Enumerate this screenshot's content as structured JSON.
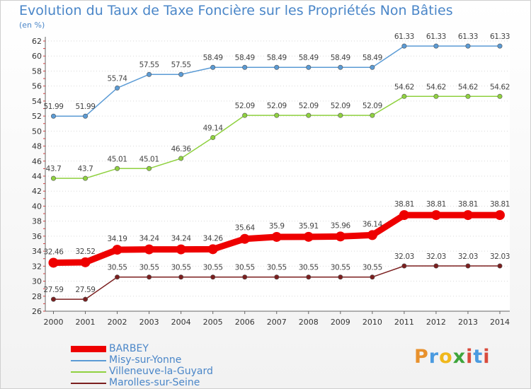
{
  "title": "Evolution du Taux de Taxe Foncière sur les Propriétés Non Bâties",
  "unit": "(en %)",
  "logo": "Proxiti",
  "chart_data": {
    "type": "line",
    "title": "Evolution du Taux de Taxe Foncière sur les Propriétés Non Bâties",
    "ylabel": "(en %)",
    "ylim": [
      26,
      62
    ],
    "yticks": [
      26,
      28,
      30,
      32,
      34,
      36,
      38,
      40,
      42,
      44,
      46,
      48,
      50,
      52,
      54,
      56,
      58,
      60,
      62
    ],
    "x": [
      "2000",
      "2001",
      "2002",
      "2003",
      "2004",
      "2005",
      "2006",
      "2007",
      "2008",
      "2009",
      "2010",
      "2011",
      "2012",
      "2013",
      "2014"
    ],
    "series": [
      {
        "name": "BARBEY",
        "color": "#ee0000",
        "values": [
          32.46,
          32.52,
          34.19,
          34.24,
          34.24,
          34.26,
          35.64,
          35.9,
          35.91,
          35.96,
          36.14,
          38.81,
          38.81,
          38.81,
          38.81
        ],
        "labels": [
          "32.46",
          "32.52",
          "34.19",
          "34.24",
          "34.24",
          "34.26",
          "35.64",
          "35.9",
          "35.91",
          "35.96",
          "36.14",
          "38.81",
          "38.81",
          "38.81",
          "38.81"
        ]
      },
      {
        "name": "Misy-sur-Yonne",
        "color": "#5b9bd5",
        "values": [
          51.99,
          51.99,
          55.74,
          57.55,
          57.55,
          58.49,
          58.49,
          58.49,
          58.49,
          58.49,
          58.49,
          61.33,
          61.33,
          61.33,
          61.33
        ],
        "labels": [
          "51.99",
          "51.99",
          "55.74",
          "57.55",
          "57.55",
          "58.49",
          "58.49",
          "58.49",
          "58.49",
          "58.49",
          "58.49",
          "61.33",
          "61.33",
          "61.33",
          "61.33"
        ]
      },
      {
        "name": "Villeneuve-la-Guyard",
        "color": "#8fd13f",
        "values": [
          43.7,
          43.7,
          45.01,
          45.01,
          46.36,
          49.14,
          52.09,
          52.09,
          52.09,
          52.09,
          52.09,
          54.62,
          54.62,
          54.62,
          54.62
        ],
        "labels": [
          "43.7",
          "43.7",
          "45.01",
          "45.01",
          "46.36",
          "49.14",
          "52.09",
          "52.09",
          "52.09",
          "52.09",
          "52.09",
          "54.62",
          "54.62",
          "54.62",
          "54.62"
        ]
      },
      {
        "name": "Marolles-sur-Seine",
        "color": "#7b1f1f",
        "values": [
          27.59,
          27.59,
          30.55,
          30.55,
          30.55,
          30.55,
          30.55,
          30.55,
          30.55,
          30.55,
          30.55,
          32.03,
          32.03,
          32.03,
          32.03
        ],
        "labels": [
          "27.59",
          "27.59",
          "30.55",
          "30.55",
          "30.55",
          "30.55",
          "30.55",
          "30.55",
          "30.55",
          "30.55",
          "30.55",
          "32.03",
          "32.03",
          "32.03",
          "32.03"
        ]
      }
    ],
    "legend_position": "bottom-left"
  }
}
